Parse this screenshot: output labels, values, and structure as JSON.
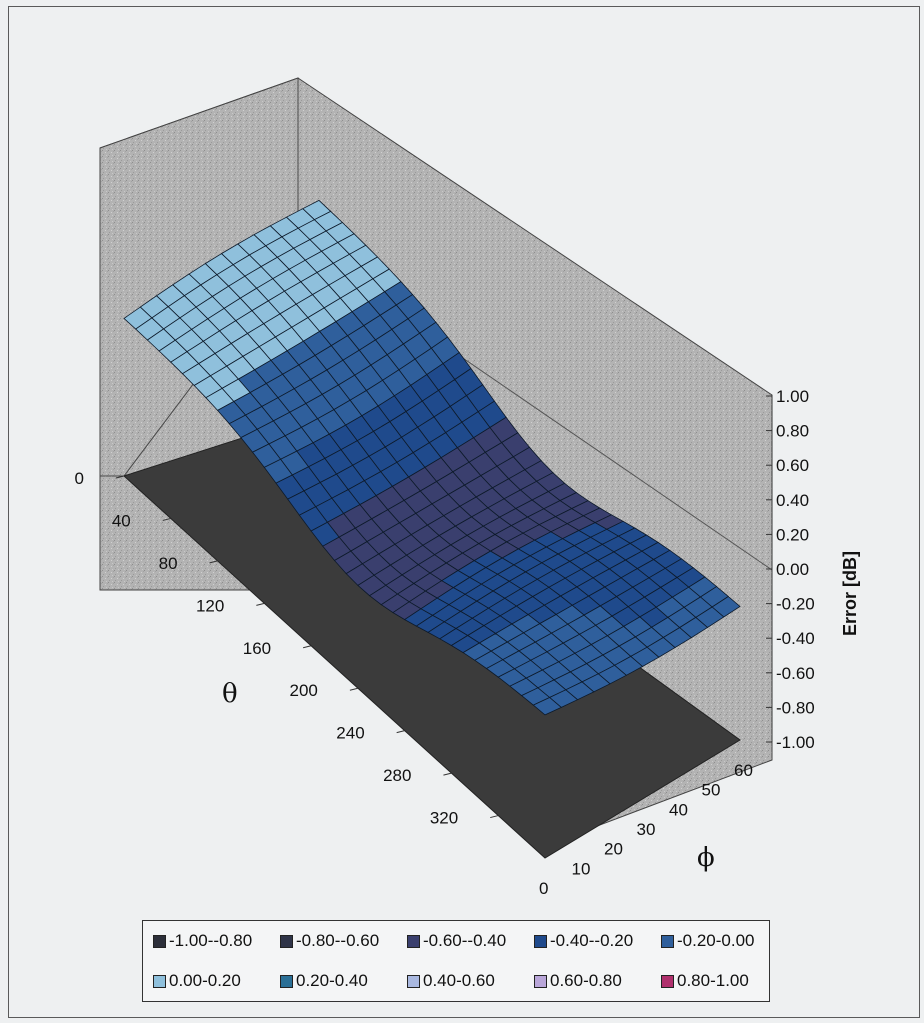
{
  "chart_data": {
    "type": "surface-3d",
    "z_label": "Error [dB]",
    "z_ticks": [
      "1.00",
      "0.80",
      "0.60",
      "0.40",
      "0.20",
      "0.00",
      "-0.20",
      "-0.40",
      "-0.60",
      "-0.80",
      "-1.00"
    ],
    "zlim": [
      -1.0,
      1.0
    ],
    "theta_label": "θ",
    "theta_ticks": [
      "0",
      "40",
      "80",
      "120",
      "160",
      "200",
      "240",
      "280",
      "320"
    ],
    "theta_range": [
      0,
      360
    ],
    "phi_label": "ϕ",
    "phi_ticks": [
      "0",
      "10",
      "20",
      "30",
      "40",
      "50",
      "60"
    ],
    "phi_range": [
      0,
      60
    ],
    "description_values_in_dB_approx": {
      "theta": [
        0,
        40,
        80,
        120,
        160,
        200,
        240,
        280,
        320,
        360
      ],
      "error_at_phi_mid": [
        0.05,
        0.1,
        -0.05,
        -0.25,
        -0.45,
        -0.55,
        -0.45,
        -0.3,
        -0.2,
        -0.2
      ]
    },
    "legend": [
      {
        "label": "-1.00--0.80",
        "color": "#2c2f3a"
      },
      {
        "label": "-0.80--0.60",
        "color": "#2f3448"
      },
      {
        "label": "-0.60--0.40",
        "color": "#3a3f6e"
      },
      {
        "label": "-0.40--0.20",
        "color": "#1f4a8c"
      },
      {
        "label": "-0.20-0.00",
        "color": "#2f5f9c"
      },
      {
        "label": "0.00-0.20",
        "color": "#8fc0dc"
      },
      {
        "label": "0.20-0.40",
        "color": "#2a6f96"
      },
      {
        "label": "0.40-0.60",
        "color": "#a9b8e0"
      },
      {
        "label": "0.60-0.80",
        "color": "#b9a6d9"
      },
      {
        "label": "0.80-1.00",
        "color": "#b0306d"
      }
    ]
  }
}
